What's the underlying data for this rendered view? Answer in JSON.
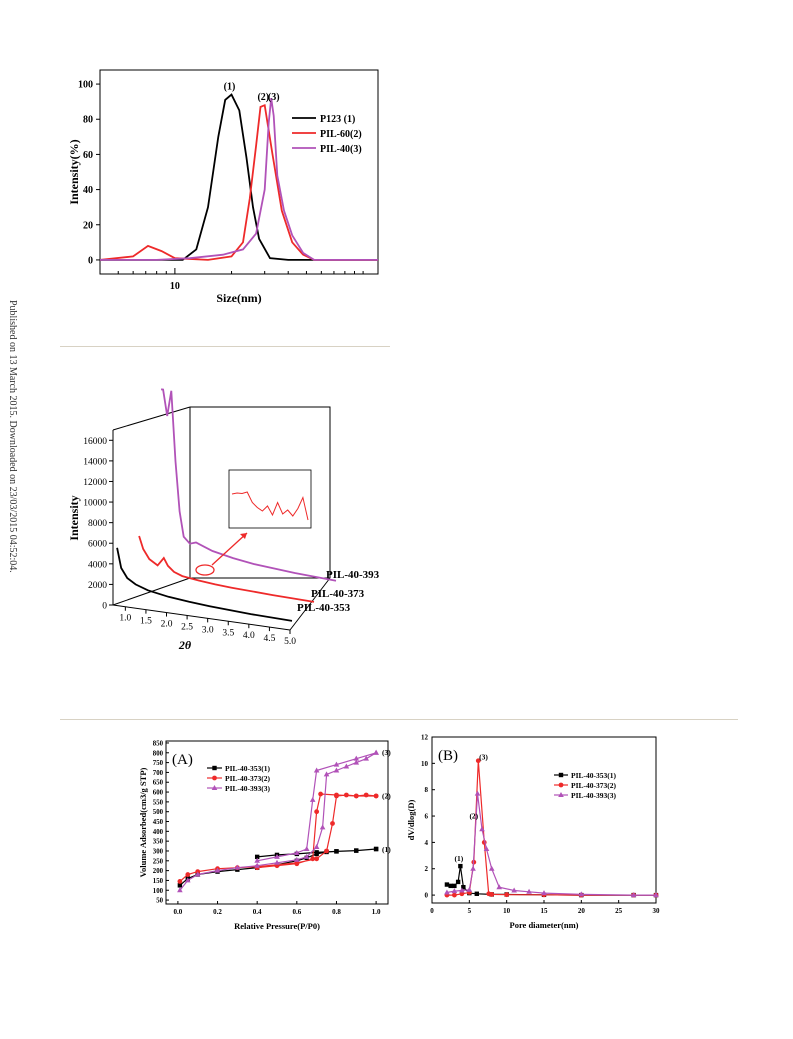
{
  "sidebar": {
    "text": "Published on 13 March 2015. Downloaded on 23/03/2015 04:52:04."
  },
  "chart_data": [
    {
      "type": "line",
      "xscale": "log",
      "xlabel": "Size(nm)",
      "ylabel": "Intensity(%)",
      "xlim": [
        4,
        120
      ],
      "ylim": [
        -8,
        108
      ],
      "xticks": [
        10
      ],
      "yticks": [
        0,
        20,
        40,
        60,
        80,
        100
      ],
      "legend": "top-right",
      "annotations": [
        "(1)",
        "(2)",
        "(3)"
      ],
      "series": [
        {
          "name": "P123   (1)",
          "color": "#000000",
          "x": [
            4,
            11,
            13,
            15,
            17,
            18.5,
            20,
            22,
            24,
            26,
            28,
            32,
            40,
            120
          ],
          "y": [
            0,
            0,
            6,
            30,
            70,
            91,
            94,
            85,
            58,
            30,
            12,
            1,
            0,
            0
          ]
        },
        {
          "name": "PIL-60(2)",
          "color": "#ee2a2a",
          "x": [
            4,
            6,
            7.2,
            8.5,
            10,
            15,
            20,
            23,
            25,
            27,
            28.5,
            30,
            33,
            37,
            42,
            48,
            55,
            120
          ],
          "y": [
            0,
            2,
            8,
            5,
            1,
            0,
            2,
            10,
            35,
            65,
            87,
            88,
            60,
            28,
            10,
            3,
            0,
            0
          ]
        },
        {
          "name": "PIL-40(3)",
          "color": "#b152b8",
          "x": [
            4,
            8,
            12,
            18,
            23,
            27,
            30,
            31.5,
            32.5,
            33.5,
            35,
            38,
            42,
            48,
            55,
            120
          ],
          "y": [
            0,
            0,
            1,
            3,
            6,
            15,
            40,
            78,
            92,
            82,
            48,
            28,
            14,
            4,
            0,
            0
          ]
        }
      ]
    },
    {
      "type": "line",
      "projection": "3d",
      "xlabel": "2θ",
      "ylabel": "Intensity",
      "xlim": [
        0.7,
        5.0
      ],
      "xticks": [
        "1.0",
        "1.5",
        "2.0",
        "2.5",
        "3.0",
        "3.5",
        "4.0",
        "4.5",
        "5.0"
      ],
      "zlim": [
        0,
        17000
      ],
      "zticks": [
        0,
        2000,
        4000,
        6000,
        8000,
        10000,
        12000,
        14000,
        16000
      ],
      "series": [
        {
          "name": "PIL-40-353",
          "color": "#000000",
          "x": [
            0.75,
            0.85,
            1.0,
            1.2,
            1.5,
            2.0,
            2.5,
            3.0,
            4.0,
            5.0
          ],
          "y": [
            4900,
            3000,
            2100,
            1600,
            1200,
            850,
            650,
            500,
            300,
            200
          ]
        },
        {
          "name": "PIL-40-373",
          "color": "#ee2a2a",
          "x": [
            0.75,
            0.85,
            1.0,
            1.2,
            1.35,
            1.45,
            1.6,
            1.8,
            2.2,
            2.6,
            3.0,
            4.0,
            5.0
          ],
          "y": [
            4300,
            3100,
            2200,
            1700,
            2500,
            1800,
            1300,
            1000,
            800,
            650,
            550,
            400,
            300
          ]
        },
        {
          "name": "PIL-40-393",
          "color": "#b152b8",
          "x": [
            0.75,
            0.8,
            0.9,
            1.0,
            1.1,
            1.2,
            1.3,
            1.45,
            1.6,
            1.8,
            2.0,
            2.5,
            3.0,
            4.0,
            5.0
          ],
          "y": [
            16800,
            16800,
            14300,
            16800,
            10000,
            5200,
            2800,
            2200,
            2400,
            2100,
            1800,
            1400,
            1100,
            800,
            600
          ]
        }
      ],
      "inset": {
        "series_color": "#ee2a2a",
        "y": [
          0.62,
          0.64,
          0.63,
          0.66,
          0.45,
          0.35,
          0.28,
          0.38,
          0.2,
          0.45,
          0.22,
          0.3,
          0.18,
          0.33,
          0.55,
          0.1
        ]
      }
    },
    {
      "type": "line",
      "panel_label": "(A)",
      "xlabel": "Relative Pressure(P/P0)",
      "ylabel": "Volume Adsorbed(cm3/g STP)",
      "xlim": [
        -0.06,
        1.06
      ],
      "ylim": [
        30,
        860
      ],
      "xticks": [
        "0.0",
        "0.2",
        "0.4",
        "0.6",
        "0.8",
        "1.0"
      ],
      "yticks": [
        50,
        100,
        150,
        200,
        250,
        300,
        350,
        400,
        450,
        500,
        550,
        600,
        650,
        700,
        750,
        800,
        850
      ],
      "legend": "top-left",
      "annotations": [
        "(1)",
        "(2)",
        "(3)"
      ],
      "series": [
        {
          "name": "PIL-40-353(1)",
          "color": "#000000",
          "x": [
            0.01,
            0.05,
            0.1,
            0.2,
            0.3,
            0.4,
            0.5,
            0.6,
            0.65,
            0.7,
            0.75,
            0.8,
            0.9,
            1.0,
            1.0,
            0.9,
            0.8,
            0.7,
            0.6,
            0.5,
            0.4
          ],
          "y": [
            125,
            160,
            180,
            195,
            205,
            215,
            230,
            250,
            265,
            285,
            295,
            298,
            302,
            310,
            310,
            302,
            298,
            293,
            285,
            280,
            270
          ]
        },
        {
          "name": "PIL-40-373(2)",
          "color": "#ee2a2a",
          "x": [
            0.01,
            0.05,
            0.1,
            0.2,
            0.3,
            0.4,
            0.5,
            0.6,
            0.7,
            0.75,
            0.78,
            0.8,
            0.85,
            0.9,
            0.95,
            1.0,
            1.0,
            0.9,
            0.8,
            0.72,
            0.7,
            0.68,
            0.6,
            0.5,
            0.4
          ],
          "y": [
            145,
            180,
            195,
            210,
            215,
            220,
            230,
            240,
            260,
            300,
            440,
            580,
            585,
            580,
            585,
            580,
            580,
            580,
            585,
            590,
            500,
            260,
            235,
            225,
            215
          ]
        },
        {
          "name": "PIL-40-393(3)",
          "color": "#b152b8",
          "x": [
            0.01,
            0.05,
            0.1,
            0.2,
            0.3,
            0.4,
            0.5,
            0.6,
            0.65,
            0.7,
            0.73,
            0.75,
            0.8,
            0.85,
            0.9,
            0.95,
            1.0,
            1.0,
            0.9,
            0.8,
            0.7,
            0.68,
            0.65,
            0.6,
            0.5,
            0.4
          ],
          "y": [
            100,
            150,
            180,
            200,
            215,
            225,
            240,
            255,
            270,
            320,
            420,
            690,
            710,
            730,
            750,
            770,
            800,
            800,
            770,
            740,
            710,
            560,
            310,
            290,
            270,
            250
          ]
        }
      ]
    },
    {
      "type": "line",
      "panel_label": "(B)",
      "xlabel": "Pore diameter(nm)",
      "ylabel": "dV/dlog(D)",
      "xlim": [
        0,
        30
      ],
      "ylim": [
        -0.6,
        12
      ],
      "xticks": [
        0,
        5,
        10,
        15,
        20,
        25,
        30
      ],
      "yticks": [
        0,
        2,
        4,
        6,
        8,
        10,
        12
      ],
      "legend": "top-right",
      "annotations": [
        "(1)",
        "(2)",
        "(3)"
      ],
      "series": [
        {
          "name": "PIL-40-353(1)",
          "color": "#000000",
          "x": [
            2,
            2.5,
            3.0,
            3.5,
            3.8,
            4.2,
            5,
            6,
            8,
            10,
            15,
            20,
            27,
            30
          ],
          "y": [
            0.8,
            0.7,
            0.7,
            1.0,
            2.2,
            0.6,
            0.15,
            0.1,
            0.05,
            0.05,
            0.02,
            0.0,
            0.0,
            0.0
          ]
        },
        {
          "name": "PIL-40-373(2)",
          "color": "#ee2a2a",
          "x": [
            2,
            3,
            4,
            5,
            5.6,
            6.2,
            7.0,
            7.6,
            8,
            10,
            15,
            20,
            27,
            30
          ],
          "y": [
            0.0,
            0.0,
            0.1,
            0.2,
            2.5,
            10.2,
            4.0,
            0.1,
            0.05,
            0.03,
            0.02,
            0.0,
            0.0,
            0.0
          ]
        },
        {
          "name": "PIL-40-393(3)",
          "color": "#b152b8",
          "x": [
            2,
            3,
            4,
            5,
            5.5,
            6.1,
            6.7,
            7.3,
            8,
            9,
            11,
            13,
            15,
            20,
            27,
            30
          ],
          "y": [
            0.2,
            0.3,
            0.35,
            0.4,
            2.0,
            7.7,
            5.0,
            3.5,
            2.0,
            0.6,
            0.35,
            0.25,
            0.15,
            0.05,
            0.0,
            0.0
          ]
        }
      ]
    }
  ]
}
